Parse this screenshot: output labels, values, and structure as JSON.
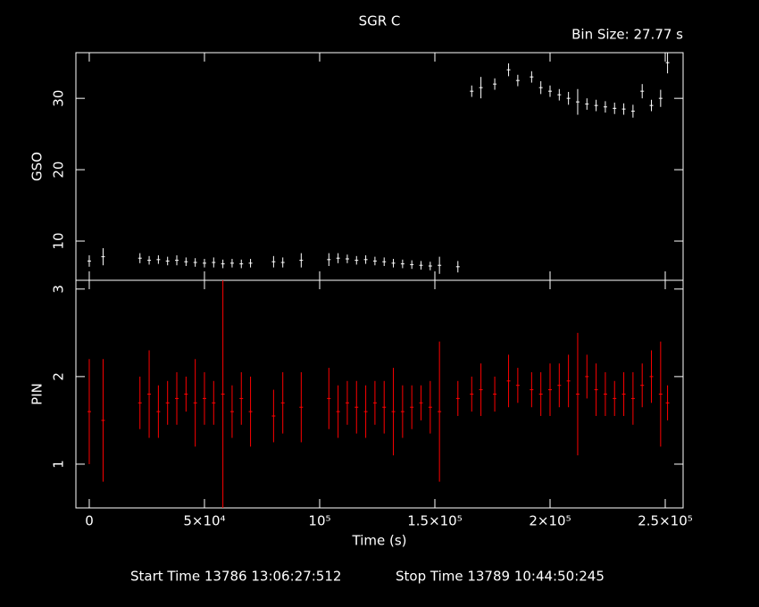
{
  "chart_data": [
    {
      "type": "errorbar",
      "title": "SGR C",
      "subtitle": "Bin Size: 27.77 s",
      "ylabel": "GSO",
      "color": "#ffffff",
      "x": [
        0,
        6000,
        22000,
        26000,
        30000,
        34000,
        38000,
        42000,
        46000,
        50000,
        54000,
        58000,
        62000,
        66000,
        70000,
        80000,
        84000,
        92000,
        104000,
        108000,
        112000,
        116000,
        120000,
        124000,
        128000,
        132000,
        136000,
        140000,
        144000,
        148000,
        152000,
        160000,
        166000,
        170000,
        176000,
        182000,
        186000,
        192000,
        196000,
        200000,
        204000,
        208000,
        212000,
        216000,
        220000,
        224000,
        228000,
        232000,
        236000,
        240000,
        244000,
        248000,
        251000
      ],
      "values": [
        7.2,
        7.8,
        7.6,
        7.3,
        7.4,
        7.2,
        7.3,
        7.1,
        7.0,
        6.9,
        7.0,
        6.8,
        6.9,
        6.8,
        6.9,
        7.1,
        7.0,
        7.3,
        7.4,
        7.6,
        7.5,
        7.3,
        7.4,
        7.2,
        7.1,
        6.9,
        6.8,
        6.7,
        6.6,
        6.5,
        6.6,
        6.4,
        31.0,
        31.5,
        32.0,
        34.0,
        32.5,
        33.0,
        31.5,
        31.0,
        30.5,
        30.0,
        29.5,
        29.2,
        29.0,
        28.8,
        28.6,
        28.5,
        28.2,
        31.0,
        29.0,
        30.0,
        35.0
      ],
      "errors": [
        0.8,
        1.2,
        0.7,
        0.6,
        0.6,
        0.6,
        0.7,
        0.6,
        0.6,
        0.6,
        0.7,
        0.6,
        0.6,
        0.6,
        0.6,
        0.8,
        0.7,
        1.0,
        0.9,
        0.7,
        0.6,
        0.6,
        0.6,
        0.6,
        0.6,
        0.6,
        0.6,
        0.6,
        0.6,
        0.6,
        1.2,
        0.8,
        0.8,
        1.5,
        0.8,
        0.9,
        0.8,
        0.8,
        0.9,
        0.8,
        0.8,
        0.9,
        1.8,
        0.8,
        0.8,
        0.8,
        0.8,
        0.8,
        0.9,
        1.0,
        0.8,
        1.2,
        1.5
      ],
      "xlim": [
        -5800,
        257750
      ],
      "ylim": [
        4.5,
        36.4
      ],
      "yticks": [
        10,
        20,
        30
      ]
    },
    {
      "type": "errorbar",
      "ylabel": "PIN",
      "xlabel": "Time (s)",
      "color": "#ff0000",
      "notes": [
        "Start Time 13786 13:06:27:512",
        "Stop Time 13789 10:44:50:245"
      ],
      "x": [
        0,
        6000,
        22000,
        26000,
        30000,
        34000,
        38000,
        42000,
        46000,
        50000,
        54000,
        58000,
        62000,
        66000,
        70000,
        80000,
        84000,
        92000,
        104000,
        108000,
        112000,
        116000,
        120000,
        124000,
        128000,
        132000,
        136000,
        140000,
        144000,
        148000,
        152000,
        160000,
        166000,
        170000,
        176000,
        182000,
        186000,
        192000,
        196000,
        200000,
        204000,
        208000,
        212000,
        216000,
        220000,
        224000,
        228000,
        232000,
        236000,
        240000,
        244000,
        248000,
        251000
      ],
      "values": [
        1.6,
        1.5,
        1.7,
        1.8,
        1.6,
        1.7,
        1.75,
        1.8,
        1.7,
        1.75,
        1.7,
        1.8,
        1.6,
        1.75,
        1.6,
        1.55,
        1.7,
        1.65,
        1.75,
        1.6,
        1.7,
        1.65,
        1.6,
        1.7,
        1.65,
        1.6,
        1.6,
        1.65,
        1.7,
        1.65,
        1.6,
        1.75,
        1.8,
        1.85,
        1.8,
        1.95,
        1.9,
        1.85,
        1.8,
        1.85,
        1.9,
        1.95,
        1.8,
        2.0,
        1.85,
        1.8,
        1.75,
        1.8,
        1.75,
        1.9,
        2.0,
        1.8,
        1.7
      ],
      "errors": [
        0.6,
        0.7,
        0.3,
        0.5,
        0.3,
        0.25,
        0.3,
        0.2,
        0.5,
        0.3,
        0.25,
        1.4,
        0.3,
        0.3,
        0.4,
        0.3,
        0.35,
        0.4,
        0.35,
        0.3,
        0.25,
        0.3,
        0.3,
        0.25,
        0.3,
        0.5,
        0.3,
        0.25,
        0.2,
        0.3,
        0.8,
        0.2,
        0.2,
        0.3,
        0.2,
        0.3,
        0.2,
        0.2,
        0.25,
        0.3,
        0.25,
        0.3,
        0.7,
        0.25,
        0.3,
        0.25,
        0.2,
        0.25,
        0.3,
        0.25,
        0.3,
        0.6,
        0.2
      ],
      "xlim": [
        -5800,
        257750
      ],
      "ylim": [
        0.5,
        3.1
      ],
      "yticks": [
        1,
        2,
        3
      ],
      "xticks": [
        0,
        {
          "value": 50000,
          "label": "5×10⁴"
        },
        {
          "value": 100000,
          "label": "10⁵"
        },
        {
          "value": 150000,
          "label": "1.5×10⁵"
        },
        {
          "value": 200000,
          "label": "2×10⁵"
        },
        {
          "value": 250000,
          "label": "2.5×10⁵"
        }
      ]
    }
  ]
}
